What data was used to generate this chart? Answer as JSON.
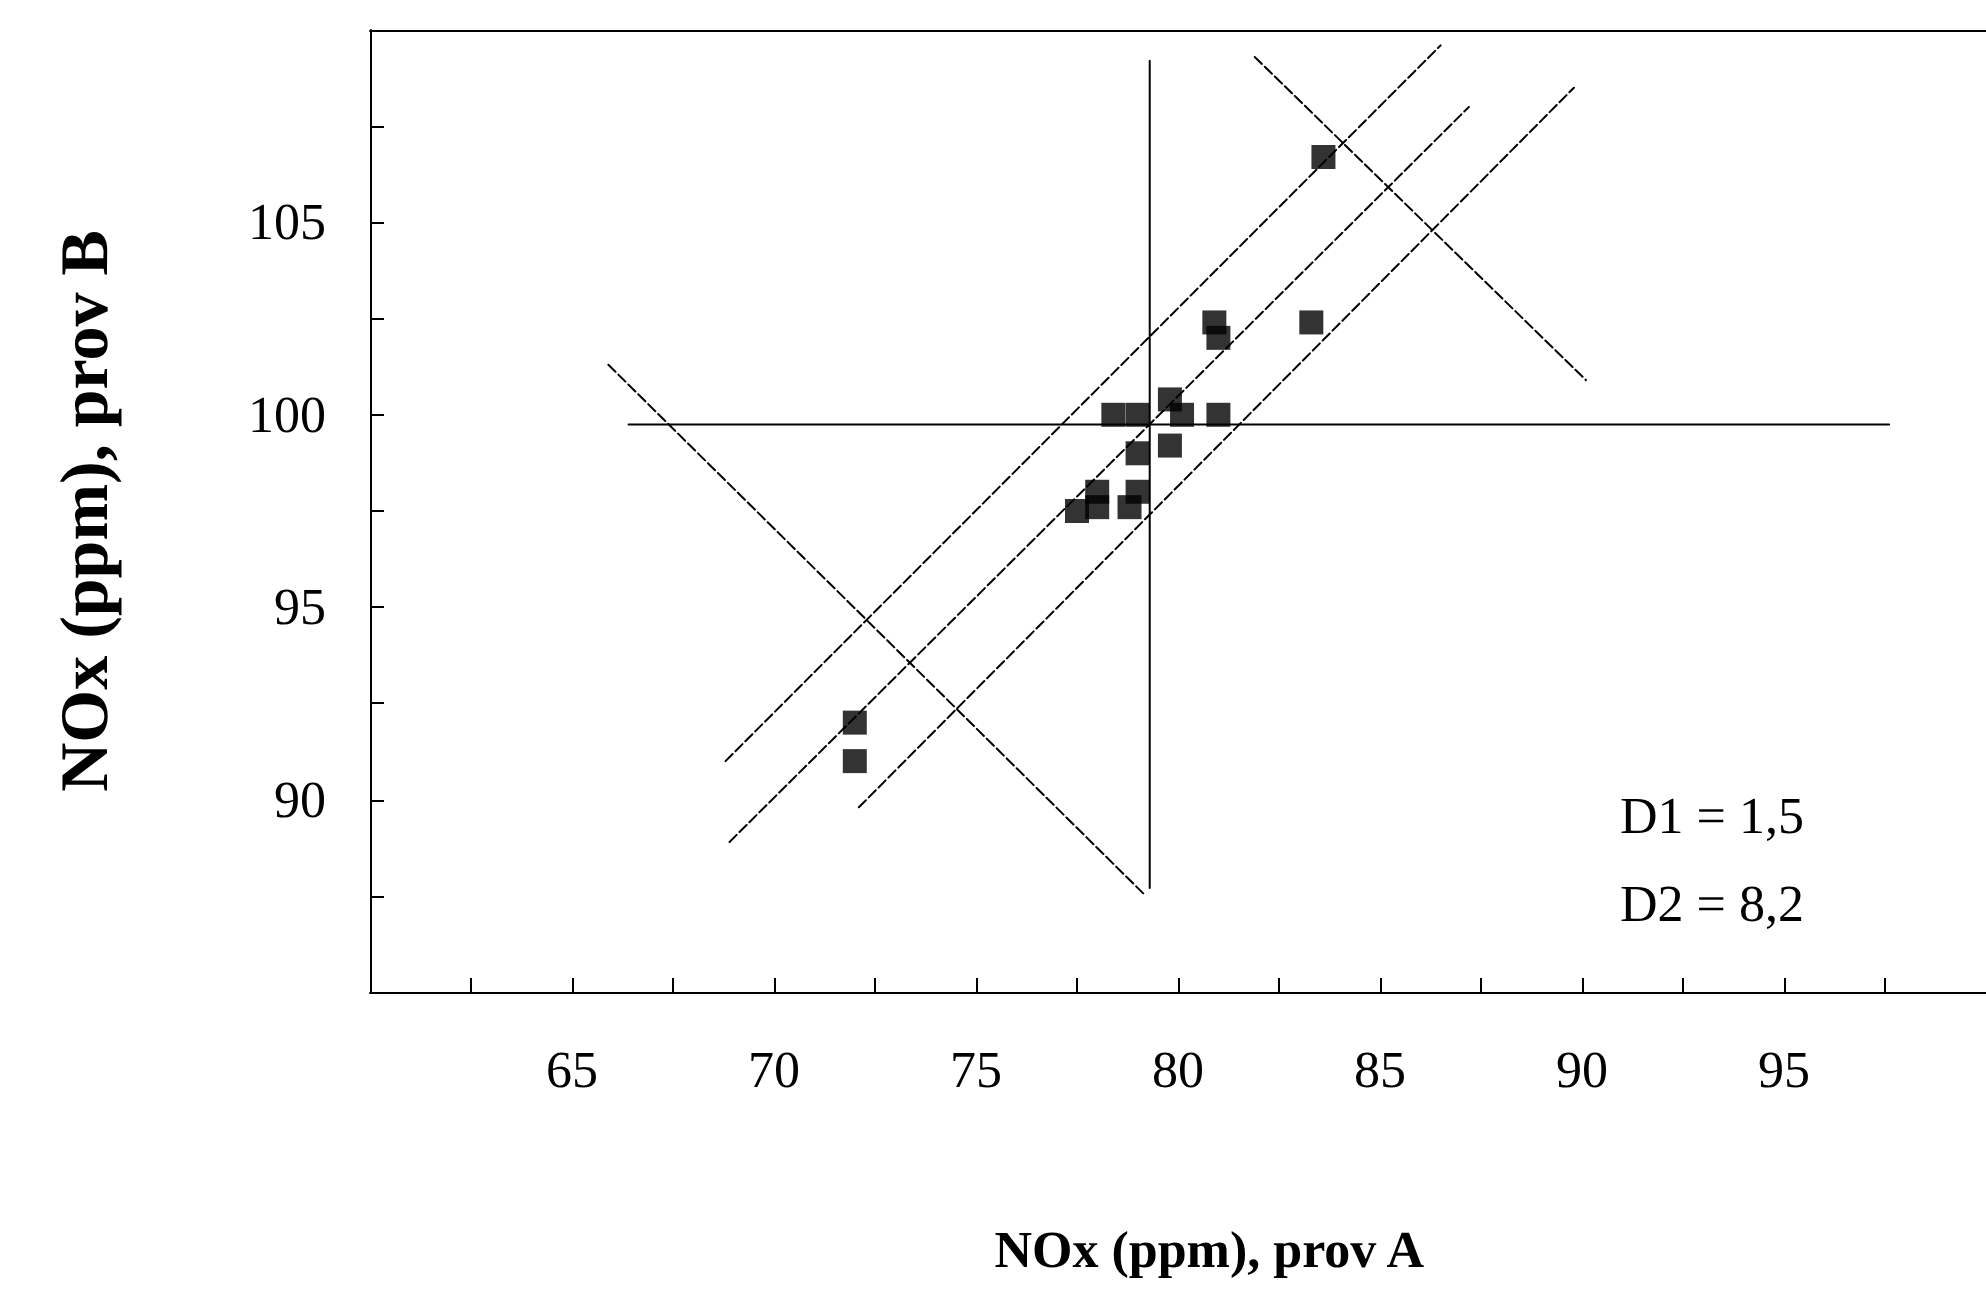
{
  "chart_data": {
    "type": "scatter",
    "xlabel": "NOx (ppm), prov A",
    "ylabel": "NOx (ppm), prov B",
    "xlim": [
      60,
      100
    ],
    "ylim": [
      85,
      110
    ],
    "xticks": [
      {
        "value": 62.5,
        "label": null
      },
      65,
      {
        "value": 67.5,
        "label": null
      },
      70,
      {
        "value": 72.5,
        "label": null
      },
      75,
      {
        "value": 77.5,
        "label": null
      },
      80,
      {
        "value": 82.5,
        "label": null
      },
      85,
      {
        "value": 87.5,
        "label": null
      },
      90,
      {
        "value": 92.5,
        "label": null
      },
      95,
      {
        "value": 97.5,
        "label": null
      }
    ],
    "yticks": [
      {
        "value": 87.5,
        "label": null
      },
      90,
      {
        "value": 92.5,
        "label": null
      },
      95,
      {
        "value": 97.5,
        "label": null
      },
      100,
      {
        "value": 102.5,
        "label": null
      },
      105,
      {
        "value": 107.5,
        "label": null
      }
    ],
    "grid": false,
    "annotations": [
      "D1 = 1,5",
      "D2 = 8,2"
    ],
    "series": [
      {
        "color": "#000000",
        "marker": "square",
        "x": [
          83.6,
          80.9,
          81.0,
          83.3,
          79.8,
          78.4,
          79.0,
          80.1,
          81.0,
          79.0,
          79.8,
          78.0,
          79.0,
          77.5,
          78.0,
          78.8,
          72.0,
          72.0
        ],
        "values": [
          106.7,
          102.4,
          102.0,
          102.4,
          100.4,
          100.0,
          100.0,
          100.0,
          100.0,
          99.0,
          99.2,
          98.0,
          98.0,
          97.5,
          97.6,
          97.6,
          92.0,
          91.0
        ]
      },
      {
        "type": "line",
        "color": "#000000",
        "marker": "none",
        "line_style": "solid",
        "x": [
          79.3,
          79.3
        ],
        "values": [
          87.7,
          109.2
        ]
      },
      {
        "type": "line",
        "color": "#000000",
        "marker": "none",
        "line_style": "solid",
        "x": [
          66.4,
          97.6
        ],
        "values": [
          99.75,
          99.75
        ]
      },
      {
        "type": "line",
        "color": "#000000",
        "marker": "none",
        "line_style": "dashed",
        "x": [
          68.8,
          86.5
        ],
        "values": [
          91.0,
          109.6
        ]
      },
      {
        "type": "line",
        "color": "#000000",
        "marker": "none",
        "line_style": "dashed",
        "x": [
          68.9,
          87.2
        ],
        "values": [
          88.9,
          108.0
        ]
      },
      {
        "type": "line",
        "color": "#000000",
        "marker": "none",
        "line_style": "dashed",
        "x": [
          72.1,
          89.8
        ],
        "values": [
          89.8,
          108.5
        ]
      },
      {
        "type": "line",
        "color": "#000000",
        "marker": "none",
        "line_style": "dashed",
        "x": [
          65.9,
          79.2
        ],
        "values": [
          101.3,
          87.5
        ]
      },
      {
        "type": "line",
        "color": "#000000",
        "marker": "none",
        "line_style": "dashed",
        "x": [
          81.9,
          90.1
        ],
        "values": [
          109.3,
          100.9
        ]
      }
    ]
  }
}
